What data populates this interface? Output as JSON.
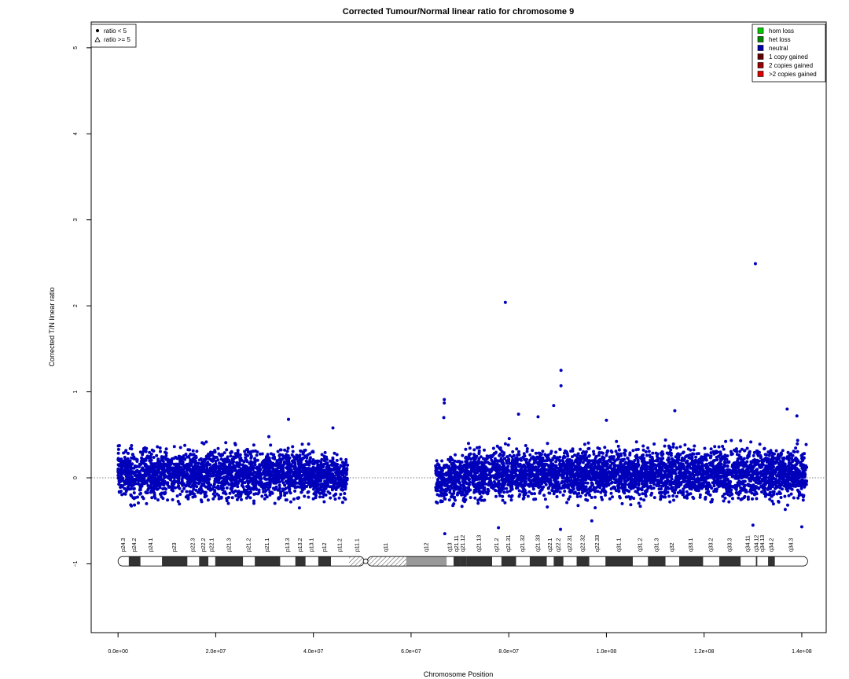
{
  "chart_data": {
    "type": "scatter",
    "title": "Corrected Tumour/Normal linear ratio for chromosome  9",
    "xlabel": "Chromosome Position",
    "ylabel": "Corrected T/N linear ratio",
    "xlim": [
      -5500000,
      145000000
    ],
    "ylim": [
      -1.8,
      5.3
    ],
    "xticks": [
      0,
      20000000,
      40000000,
      60000000,
      80000000,
      100000000,
      120000000,
      140000000
    ],
    "xtick_labels": [
      "0.0e+00",
      "2.0e+07",
      "4.0e+07",
      "6.0e+07",
      "8.0e+07",
      "1.0e+08",
      "1.2e+08",
      "1.4e+08"
    ],
    "yticks": [
      -1,
      0,
      1,
      2,
      3,
      4,
      5
    ],
    "ytick_labels": [
      "−1",
      "0",
      "1",
      "2",
      "3",
      "4",
      "5"
    ],
    "reference_line_y": 0,
    "point_color": "#0000bb",
    "symbol_legend": [
      {
        "symbol": "dot",
        "label": "ratio < 5"
      },
      {
        "symbol": "triangle",
        "label": "ratio >= 5"
      }
    ],
    "legend": [
      {
        "label": "hom loss",
        "color": "#00cc00"
      },
      {
        "label": "het loss",
        "color": "#008800"
      },
      {
        "label": "neutral",
        "color": "#0000aa"
      },
      {
        "label": "1 copy gained",
        "color": "#660000"
      },
      {
        "label": "2 copies gained",
        "color": "#990000"
      },
      {
        "label": ">2 copies gained",
        "color": "#dd0000"
      }
    ],
    "series": [
      {
        "status": "neutral",
        "regions": [
          {
            "x_range": [
              0,
              40000000
            ],
            "y_range": [
              -0.35,
              0.45
            ]
          },
          {
            "x_range": [
              40000000,
              47000000
            ],
            "y_range": [
              -0.35,
              0.35
            ]
          },
          {
            "x_range": [
              65000000,
              71000000
            ],
            "y_range": [
              -0.4,
              0.35
            ]
          },
          {
            "x_range": [
              71000000,
              141000000
            ],
            "y_range": [
              -0.35,
              0.45
            ]
          }
        ],
        "outliers": [
          {
            "x": 79300000,
            "y": 2.04
          },
          {
            "x": 130500000,
            "y": 2.49
          },
          {
            "x": 90700000,
            "y": 1.25
          },
          {
            "x": 90700000,
            "y": 1.07
          },
          {
            "x": 66800000,
            "y": 0.91
          },
          {
            "x": 66800000,
            "y": 0.87
          },
          {
            "x": 89200000,
            "y": 0.84
          },
          {
            "x": 137000000,
            "y": 0.8
          },
          {
            "x": 114000000,
            "y": 0.78
          },
          {
            "x": 82000000,
            "y": 0.74
          },
          {
            "x": 139000000,
            "y": 0.72
          },
          {
            "x": 86000000,
            "y": 0.71
          },
          {
            "x": 34900000,
            "y": 0.68
          },
          {
            "x": 100000000,
            "y": 0.67
          },
          {
            "x": 66700000,
            "y": 0.7
          },
          {
            "x": 44000000,
            "y": 0.58
          },
          {
            "x": 66900000,
            "y": -0.65
          },
          {
            "x": 77900000,
            "y": -0.58
          },
          {
            "x": 90600000,
            "y": -0.6
          },
          {
            "x": 130000000,
            "y": -0.55
          },
          {
            "x": 140000000,
            "y": -0.57
          },
          {
            "x": 97000000,
            "y": -0.5
          }
        ]
      }
    ],
    "ideogram": {
      "y": -0.97,
      "bands": [
        {
          "name": "p24.3",
          "start": 0,
          "end": 2200000,
          "stain": "gneg"
        },
        {
          "name": "p24.2",
          "start": 2200000,
          "end": 4600000,
          "stain": "gpos"
        },
        {
          "name": "p24.1",
          "start": 4600000,
          "end": 9000000,
          "stain": "gneg"
        },
        {
          "name": "p23",
          "start": 9000000,
          "end": 14200000,
          "stain": "gpos"
        },
        {
          "name": "p22.3",
          "start": 14200000,
          "end": 16600000,
          "stain": "gneg"
        },
        {
          "name": "p22.2",
          "start": 16600000,
          "end": 18500000,
          "stain": "gpos"
        },
        {
          "name": "p22.1",
          "start": 18500000,
          "end": 19900000,
          "stain": "gneg"
        },
        {
          "name": "p21.3",
          "start": 19900000,
          "end": 25600000,
          "stain": "gpos"
        },
        {
          "name": "p21.2",
          "start": 25600000,
          "end": 28000000,
          "stain": "gneg"
        },
        {
          "name": "p21.1",
          "start": 28000000,
          "end": 33200000,
          "stain": "gpos"
        },
        {
          "name": "p13.3",
          "start": 33200000,
          "end": 36300000,
          "stain": "gneg"
        },
        {
          "name": "p13.2",
          "start": 36300000,
          "end": 38400000,
          "stain": "gpos"
        },
        {
          "name": "p13.1",
          "start": 38400000,
          "end": 41000000,
          "stain": "gneg"
        },
        {
          "name": "p12",
          "start": 41000000,
          "end": 43600000,
          "stain": "gpos"
        },
        {
          "name": "p11.2",
          "start": 43600000,
          "end": 47300000,
          "stain": "gneg"
        },
        {
          "name": "p11.1",
          "start": 47300000,
          "end": 50700000,
          "stain": "var"
        },
        {
          "name": "q11",
          "start": 50700000,
          "end": 59000000,
          "stain": "var"
        },
        {
          "name": "q12",
          "start": 59000000,
          "end": 67300000,
          "stain": "gvar"
        },
        {
          "name": "q13",
          "start": 67300000,
          "end": 68700000,
          "stain": "gneg"
        },
        {
          "name": "q21.11",
          "start": 68700000,
          "end": 70000000,
          "stain": "gpos"
        },
        {
          "name": "q21.12",
          "start": 70000000,
          "end": 71300000,
          "stain": "gpos"
        },
        {
          "name": "q21.13",
          "start": 71300000,
          "end": 76600000,
          "stain": "gpos"
        },
        {
          "name": "q21.2",
          "start": 76600000,
          "end": 78500000,
          "stain": "gneg"
        },
        {
          "name": "q21.31",
          "start": 78500000,
          "end": 81500000,
          "stain": "gpos"
        },
        {
          "name": "q21.32",
          "start": 81500000,
          "end": 84300000,
          "stain": "gneg"
        },
        {
          "name": "q21.33",
          "start": 84300000,
          "end": 87800000,
          "stain": "gpos"
        },
        {
          "name": "q22.1",
          "start": 87800000,
          "end": 89200000,
          "stain": "gneg"
        },
        {
          "name": "q22.2",
          "start": 89200000,
          "end": 91200000,
          "stain": "gpos"
        },
        {
          "name": "q22.31",
          "start": 91200000,
          "end": 93900000,
          "stain": "gneg"
        },
        {
          "name": "q22.32",
          "start": 93900000,
          "end": 96500000,
          "stain": "gpos"
        },
        {
          "name": "q22.33",
          "start": 96500000,
          "end": 99800000,
          "stain": "gneg"
        },
        {
          "name": "q31.1",
          "start": 99800000,
          "end": 105400000,
          "stain": "gpos"
        },
        {
          "name": "q31.2",
          "start": 105400000,
          "end": 108500000,
          "stain": "gneg"
        },
        {
          "name": "q31.3",
          "start": 108500000,
          "end": 112100000,
          "stain": "gpos"
        },
        {
          "name": "q32",
          "start": 112100000,
          "end": 114900000,
          "stain": "gneg"
        },
        {
          "name": "q33.1",
          "start": 114900000,
          "end": 119800000,
          "stain": "gpos"
        },
        {
          "name": "q33.2",
          "start": 119800000,
          "end": 123100000,
          "stain": "gneg"
        },
        {
          "name": "q33.3",
          "start": 123100000,
          "end": 127500000,
          "stain": "gpos"
        },
        {
          "name": "q34.11",
          "start": 127500000,
          "end": 130600000,
          "stain": "gneg"
        },
        {
          "name": "q34.12",
          "start": 130600000,
          "end": 130900000,
          "stain": "gpos"
        },
        {
          "name": "q34.13",
          "start": 130900000,
          "end": 133100000,
          "stain": "gneg"
        },
        {
          "name": "q34.2",
          "start": 133100000,
          "end": 134500000,
          "stain": "gpos"
        },
        {
          "name": "q34.3",
          "start": 134500000,
          "end": 141200000,
          "stain": "gneg"
        }
      ]
    }
  }
}
